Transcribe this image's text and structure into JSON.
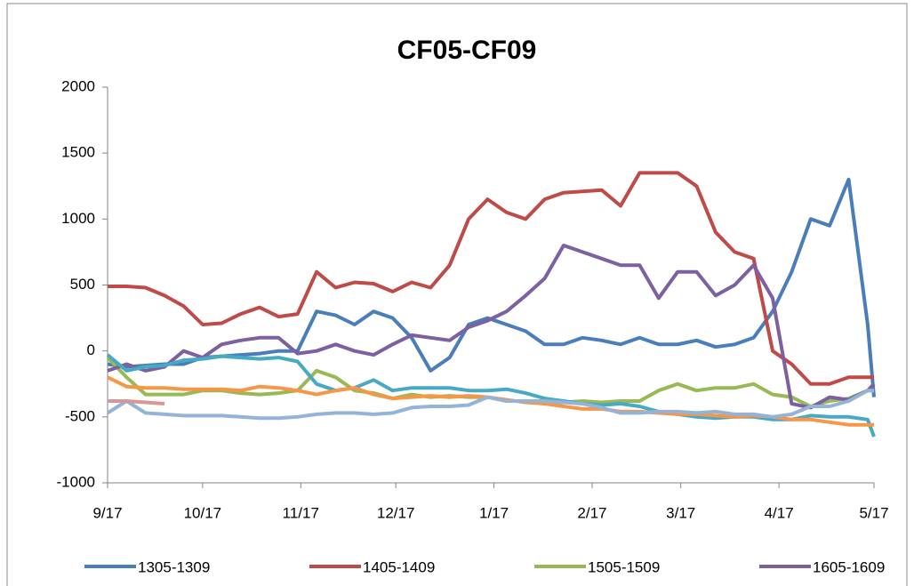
{
  "chart_data": {
    "type": "line",
    "title": "CF05-CF09",
    "x": [
      0,
      6,
      12,
      18,
      24,
      30,
      36,
      42,
      48,
      54,
      60,
      66,
      72,
      78,
      84,
      90,
      96,
      102,
      108,
      114,
      120,
      126,
      132,
      138,
      144,
      150,
      156,
      162,
      168,
      174,
      180,
      186,
      192,
      198,
      204,
      210,
      216,
      222,
      228,
      234,
      240,
      242
    ],
    "xlim": [
      0,
      242
    ],
    "xticks": [
      {
        "value": 0,
        "label": "9/17"
      },
      {
        "value": 30,
        "label": "10/17"
      },
      {
        "value": 61,
        "label": "11/17"
      },
      {
        "value": 91,
        "label": "12/17"
      },
      {
        "value": 122,
        "label": "1/17"
      },
      {
        "value": 153,
        "label": "2/17"
      },
      {
        "value": 181,
        "label": "3/17"
      },
      {
        "value": 212,
        "label": "4/17"
      },
      {
        "value": 242,
        "label": "5/17"
      }
    ],
    "ylim": [
      -1000,
      2000
    ],
    "yticks": [
      -1000,
      -500,
      0,
      500,
      1000,
      1500,
      2000
    ],
    "grid": false,
    "legend": "bottom",
    "series": [
      {
        "name": "1305-1309",
        "color": "#4a7ebb",
        "values": [
          -100,
          -120,
          -110,
          -100,
          -100,
          -50,
          -40,
          -30,
          -20,
          0,
          0,
          300,
          270,
          200,
          300,
          250,
          100,
          -150,
          -50,
          200,
          250,
          200,
          150,
          50,
          50,
          100,
          80,
          50,
          100,
          50,
          50,
          80,
          30,
          50,
          100,
          300,
          600,
          1000,
          950,
          1300,
          200,
          -350
        ]
      },
      {
        "name": "1405-1409",
        "color": "#be4b48",
        "values": [
          490,
          490,
          480,
          420,
          340,
          200,
          210,
          280,
          330,
          260,
          280,
          600,
          480,
          520,
          510,
          450,
          520,
          480,
          650,
          1000,
          1150,
          1050,
          1000,
          1150,
          1200,
          1210,
          1220,
          1100,
          1350,
          1350,
          1350,
          1250,
          900,
          750,
          700,
          0,
          -100,
          -250,
          -250,
          -200,
          -200,
          -200
        ]
      },
      {
        "name": "1505-1509",
        "color": "#98b954",
        "values": [
          -50,
          -200,
          -330,
          -330,
          -330,
          -300,
          -300,
          -320,
          -330,
          -320,
          -300,
          -150,
          -200,
          -300,
          -320,
          -360,
          -330,
          -350,
          -340,
          -350,
          -350,
          -380,
          -380,
          -400,
          -390,
          -380,
          -390,
          -380,
          -380,
          -300,
          -250,
          -300,
          -280,
          -280,
          -250,
          -330,
          -350,
          -420,
          -380,
          -360,
          -300,
          -300
        ]
      },
      {
        "name": "1605-1609",
        "color": "#7d60a0",
        "values": [
          -150,
          -100,
          -150,
          -120,
          0,
          -50,
          50,
          80,
          100,
          100,
          -20,
          0,
          50,
          0,
          -30,
          50,
          120,
          100,
          80,
          180,
          230,
          300,
          420,
          550,
          800,
          750,
          700,
          650,
          650,
          400,
          600,
          600,
          420,
          500,
          650,
          400,
          -400,
          -430,
          -350,
          -370,
          -300,
          -250
        ]
      },
      {
        "color": "#46aac5",
        "values": [
          -30,
          -150,
          -120,
          -110,
          -70,
          -60,
          -40,
          -50,
          -60,
          -50,
          -80,
          -250,
          -300,
          -280,
          -220,
          -300,
          -280,
          -280,
          -280,
          -300,
          -300,
          -290,
          -320,
          -360,
          -380,
          -400,
          -410,
          -400,
          -420,
          -460,
          -480,
          -500,
          -510,
          -500,
          -500,
          -520,
          -520,
          -490,
          -500,
          -500,
          -520,
          -650
        ]
      },
      {
        "color": "#f79646",
        "values": [
          -200,
          -270,
          -280,
          -280,
          -290,
          -290,
          -290,
          -300,
          -270,
          -280,
          -300,
          -330,
          -300,
          -280,
          -330,
          -360,
          -350,
          -340,
          -350,
          -340,
          -350,
          -370,
          -390,
          -400,
          -420,
          -440,
          -440,
          -460,
          -460,
          -470,
          -480,
          -480,
          -490,
          -500,
          -490,
          -500,
          -520,
          -520,
          -540,
          -560,
          -560,
          -560
        ]
      },
      {
        "color": "#95b3d7",
        "values": [
          -470,
          -380,
          -470,
          -480,
          -490,
          -490,
          -490,
          -500,
          -510,
          -510,
          -500,
          -480,
          -470,
          -470,
          -480,
          -470,
          -430,
          -420,
          -420,
          -410,
          -350,
          -380,
          -380,
          -380,
          -390,
          -400,
          -430,
          -470,
          -470,
          -460,
          -460,
          -470,
          -460,
          -480,
          -480,
          -500,
          -480,
          -420,
          -420,
          -380,
          -300,
          -300
        ]
      },
      {
        "color": "#d99694",
        "values": [
          -380,
          -380,
          -390,
          -400,
          null,
          null,
          null,
          null,
          null,
          null,
          null,
          null,
          null,
          null,
          null,
          null,
          null,
          null,
          null,
          null,
          null,
          null,
          null,
          null,
          null,
          null,
          null,
          null,
          null,
          null,
          null,
          null,
          null,
          null,
          null,
          null,
          null,
          null,
          null,
          null,
          null,
          null
        ]
      }
    ]
  }
}
